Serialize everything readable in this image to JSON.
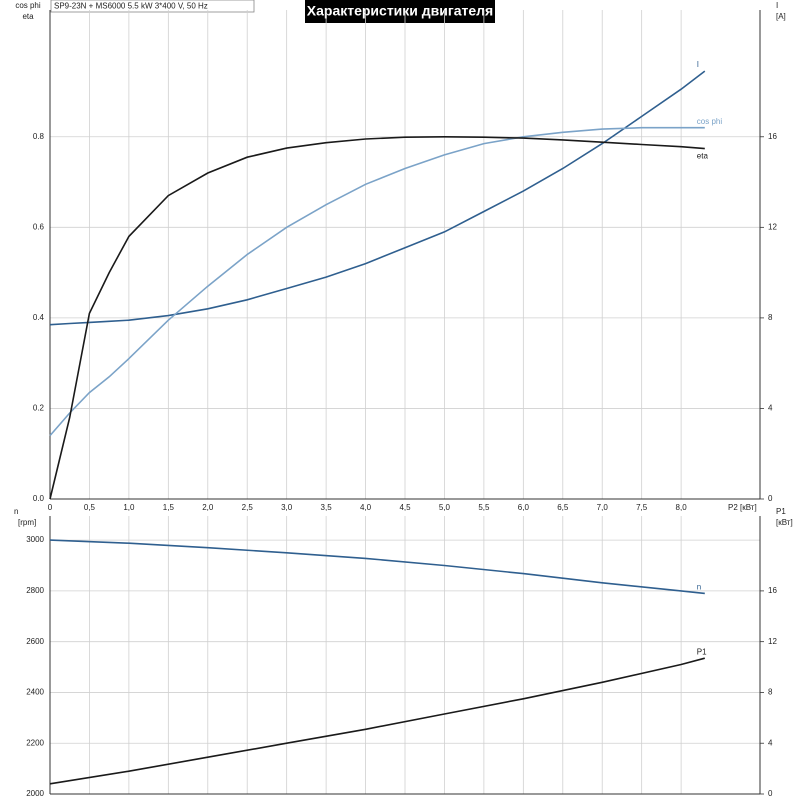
{
  "chart_data": [
    {
      "type": "line",
      "title": "Характеристики двигателя",
      "subtitle": "SP9-23N + MS6000   5.5 kW   3*400 V, 50 Hz",
      "ylabel": [
        "cos phi",
        "eta"
      ],
      "y2label": [
        "I",
        "[A]"
      ],
      "xlabel": "P2 [кВт]",
      "x": [
        0,
        0.25,
        0.5,
        0.75,
        1.0,
        1.5,
        2.0,
        2.5,
        3.0,
        3.5,
        4.0,
        4.5,
        5.0,
        5.5,
        6.0,
        6.5,
        7.0,
        7.5,
        8.0,
        8.3
      ],
      "series": [
        {
          "name": "I",
          "color": "#2f5f8f",
          "axis": "y2",
          "values": [
            7.7,
            7.75,
            7.8,
            7.85,
            7.9,
            8.1,
            8.4,
            8.8,
            9.3,
            9.8,
            10.4,
            11.1,
            11.8,
            12.7,
            13.6,
            14.6,
            15.7,
            16.9,
            18.1,
            18.9
          ]
        },
        {
          "name": "cos phi",
          "color": "#7ba3c8",
          "values": [
            0.14,
            0.19,
            0.235,
            0.27,
            0.31,
            0.395,
            0.47,
            0.54,
            0.6,
            0.65,
            0.695,
            0.73,
            0.76,
            0.785,
            0.8,
            0.81,
            0.817,
            0.82,
            0.82,
            0.82
          ]
        },
        {
          "name": "eta",
          "color": "#1a1a1a",
          "values": [
            0,
            0.18,
            0.41,
            0.5,
            0.58,
            0.67,
            0.72,
            0.755,
            0.775,
            0.787,
            0.795,
            0.799,
            0.8,
            0.799,
            0.797,
            0.793,
            0.788,
            0.783,
            0.778,
            0.774
          ]
        }
      ],
      "xlim": [
        0,
        9
      ],
      "xticks": [
        0,
        {
          "value": 0.5,
          "label": "0,5"
        },
        {
          "value": 1.0,
          "label": "1,0"
        },
        {
          "value": 1.5,
          "label": "1,5"
        },
        {
          "value": 2.0,
          "label": "2,0"
        },
        {
          "value": 2.5,
          "label": "2,5"
        },
        {
          "value": 3.0,
          "label": "3,0"
        },
        {
          "value": 3.5,
          "label": "3,5"
        },
        {
          "value": 4.0,
          "label": "4,0"
        },
        {
          "value": 4.5,
          "label": "4,5"
        },
        {
          "value": 5.0,
          "label": "5,0"
        },
        {
          "value": 5.5,
          "label": "5,5"
        },
        {
          "value": 6.0,
          "label": "6,0"
        },
        {
          "value": 6.5,
          "label": "6,5"
        },
        {
          "value": 7.0,
          "label": "7,0"
        },
        {
          "value": 7.5,
          "label": "7,5"
        },
        {
          "value": 8.0,
          "label": "8,0"
        }
      ],
      "ylim": [
        0,
        1.08
      ],
      "yticks": [
        {
          "value": 0,
          "label": "0.0"
        },
        0.2,
        0.4,
        0.6,
        0.8
      ],
      "y2lim": [
        0,
        21.6
      ],
      "y2ticks": [
        0,
        4,
        8,
        12,
        16
      ],
      "grid": true
    },
    {
      "type": "line",
      "ylabel": [
        "n",
        "[rpm]"
      ],
      "y2label": [
        "P1",
        "[кВт]"
      ],
      "x": [
        0,
        1,
        2,
        3,
        4,
        5,
        6,
        7,
        8,
        8.3
      ],
      "series": [
        {
          "name": "n",
          "color": "#2f5f8f",
          "values": [
            3000,
            2988,
            2970,
            2950,
            2928,
            2900,
            2868,
            2832,
            2800,
            2790
          ]
        },
        {
          "name": "P1",
          "color": "#1a1a1a",
          "axis": "y2",
          "values": [
            0.8,
            1.8,
            2.9,
            4.0,
            5.1,
            6.3,
            7.5,
            8.8,
            10.2,
            10.7
          ]
        }
      ],
      "xlim": [
        0,
        9
      ],
      "ylim": [
        2000,
        3095
      ],
      "yticks": [
        2000,
        2200,
        2400,
        2600,
        2800,
        3000
      ],
      "y2lim": [
        0,
        21.9
      ],
      "y2ticks": [
        0,
        4,
        8,
        12,
        16
      ],
      "grid": true
    }
  ]
}
